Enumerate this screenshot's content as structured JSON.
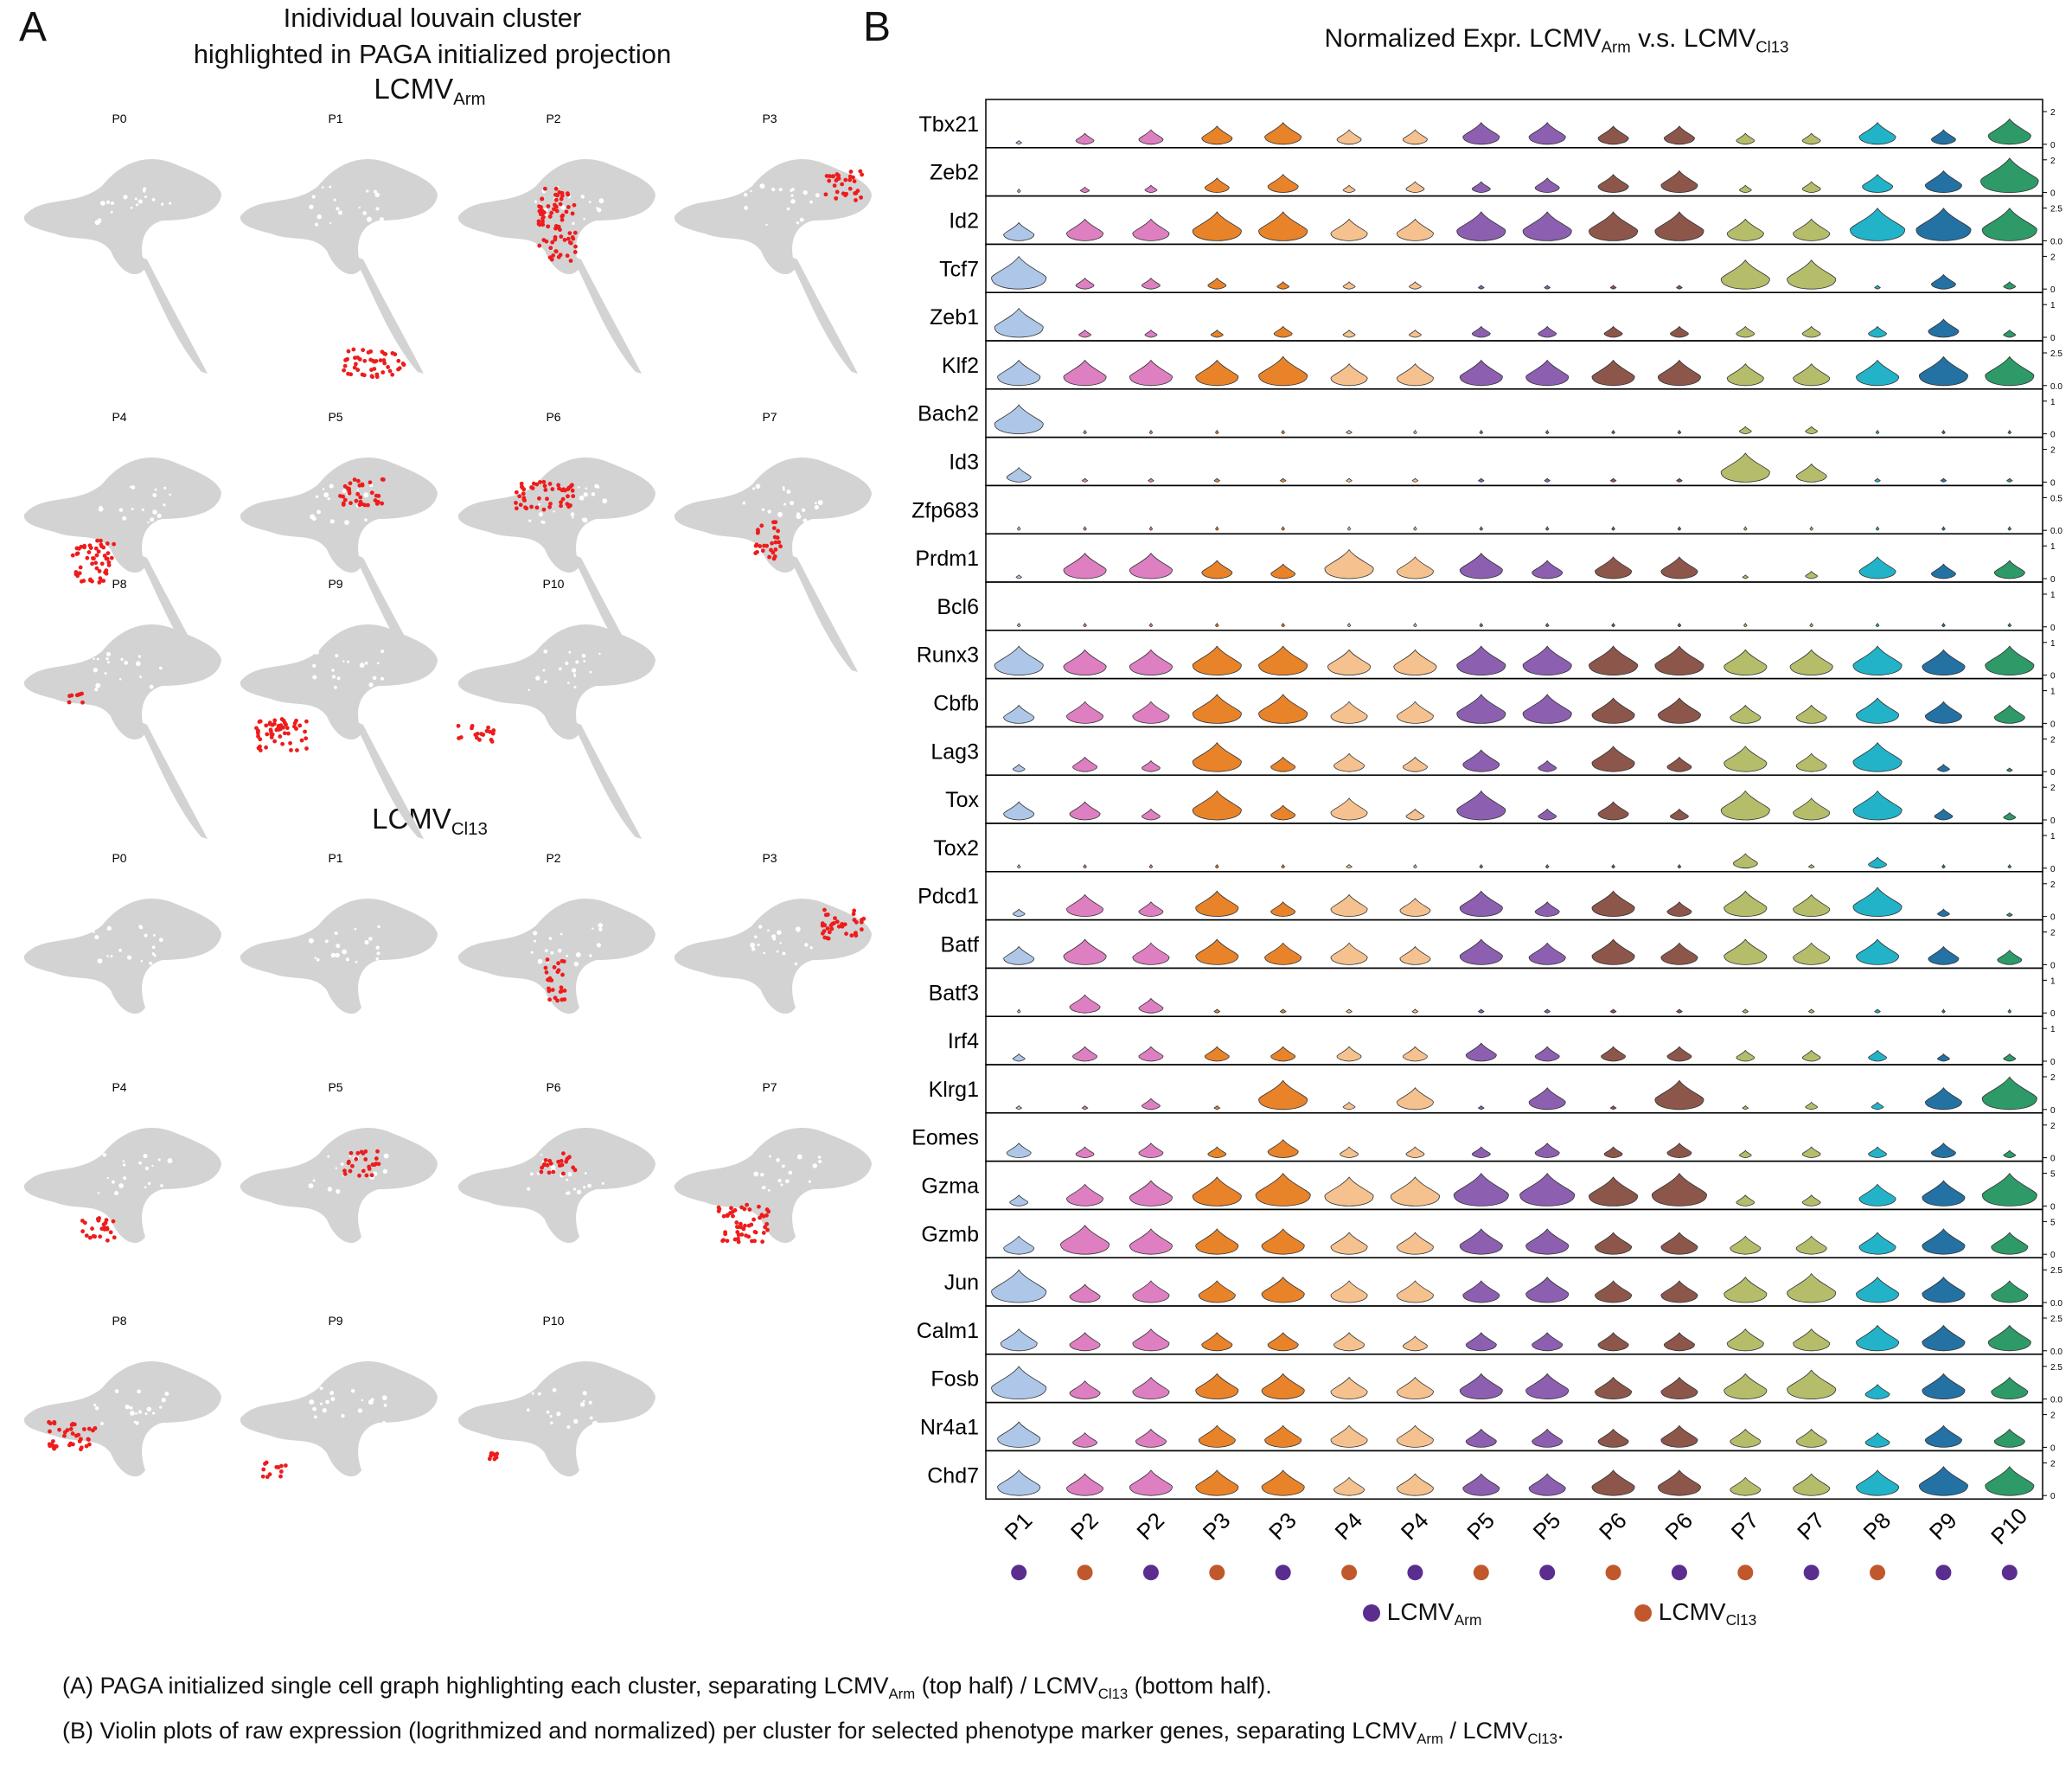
{
  "panelA": {
    "letter": "A",
    "title_line1": "Inidividual louvain cluster",
    "title_line2": "highlighted in PAGA initialized projection",
    "arm": {
      "label": "LCMV",
      "sub": "Arm"
    },
    "cl13": {
      "label": "LCMV",
      "sub": "Cl13"
    },
    "cluster_titles": [
      "P0",
      "P1",
      "P2",
      "P3",
      "P4",
      "P5",
      "P6",
      "P7",
      "P8",
      "P9",
      "P10"
    ],
    "colors": {
      "background_cells": "#d3d3d3",
      "highlight": "#ee1c1c"
    }
  },
  "panelB": {
    "letter": "B",
    "title": "Normalized Expr. LCMV",
    "title_sub1": "Arm",
    "title_mid": " v.s. LCMV",
    "title_sub2": "Cl13",
    "legend_arm": "LCMV",
    "legend_arm_sub": "Arm",
    "legend_cl13": "LCMV",
    "legend_cl13_sub": "Cl13",
    "colors": {
      "arm_dot": "#5b2d8e",
      "cl13_dot": "#c0582c"
    }
  },
  "captions": {
    "a_pre": "(A) PAGA initialized single cell graph highlighting each cluster, separating LCMV",
    "a_sub1": "Arm",
    "a_mid": " (top half) / LCMV",
    "a_sub2": "Cl13",
    "a_post": " (bottom half).",
    "b_pre": "(B) Violin plots of raw expression (logrithmized and normalized) per cluster for selected phenotype marker genes, separating LCMV",
    "b_sub1": "Arm",
    "b_mid": " / LCMV",
    "b_sub2": "Cl13",
    "b_post": "."
  },
  "chart_data": {
    "type": "violin",
    "columns": [
      {
        "label": "P1",
        "condition": "Arm",
        "color": "#aec7e8"
      },
      {
        "label": "P2",
        "condition": "Cl13",
        "color": "#de7fc2"
      },
      {
        "label": "P2",
        "condition": "Arm",
        "color": "#de7fc2"
      },
      {
        "label": "P3",
        "condition": "Cl13",
        "color": "#e8832a"
      },
      {
        "label": "P3",
        "condition": "Arm",
        "color": "#e8832a"
      },
      {
        "label": "P4",
        "condition": "Cl13",
        "color": "#f5c28f"
      },
      {
        "label": "P4",
        "condition": "Arm",
        "color": "#f5c28f"
      },
      {
        "label": "P5",
        "condition": "Cl13",
        "color": "#8d5fb0"
      },
      {
        "label": "P5",
        "condition": "Arm",
        "color": "#8d5fb0"
      },
      {
        "label": "P6",
        "condition": "Cl13",
        "color": "#8c564b"
      },
      {
        "label": "P6",
        "condition": "Arm",
        "color": "#8c564b"
      },
      {
        "label": "P7",
        "condition": "Cl13",
        "color": "#b5bd6b"
      },
      {
        "label": "P7",
        "condition": "Arm",
        "color": "#b5bd6b"
      },
      {
        "label": "P8",
        "condition": "Cl13",
        "color": "#22b3c8"
      },
      {
        "label": "P9",
        "condition": "Arm",
        "color": "#2471a3"
      },
      {
        "label": "P10",
        "condition": "Arm",
        "color": "#2e9a67"
      }
    ],
    "genes": [
      {
        "name": "Tbx21",
        "ticks": [
          "2",
          "0"
        ],
        "levels": [
          0.1,
          0.3,
          0.4,
          0.5,
          0.6,
          0.4,
          0.4,
          0.6,
          0.6,
          0.5,
          0.5,
          0.3,
          0.3,
          0.6,
          0.4,
          0.7
        ]
      },
      {
        "name": "Zeb2",
        "ticks": [
          "2",
          "0"
        ],
        "levels": [
          0.05,
          0.15,
          0.2,
          0.4,
          0.5,
          0.2,
          0.3,
          0.3,
          0.4,
          0.5,
          0.6,
          0.2,
          0.3,
          0.5,
          0.6,
          0.95
        ]
      },
      {
        "name": "Id2",
        "ticks": [
          "2.5",
          "0.0"
        ],
        "levels": [
          0.5,
          0.6,
          0.6,
          0.8,
          0.8,
          0.6,
          0.6,
          0.8,
          0.8,
          0.8,
          0.8,
          0.6,
          0.6,
          0.9,
          0.9,
          0.9
        ]
      },
      {
        "name": "Tcf7",
        "ticks": [
          "2",
          "0"
        ],
        "levels": [
          0.9,
          0.3,
          0.3,
          0.3,
          0.2,
          0.2,
          0.2,
          0.1,
          0.1,
          0.1,
          0.1,
          0.8,
          0.8,
          0.1,
          0.4,
          0.2
        ]
      },
      {
        "name": "Zeb1",
        "ticks": [
          "1",
          "0"
        ],
        "levels": [
          0.8,
          0.2,
          0.2,
          0.2,
          0.3,
          0.2,
          0.2,
          0.3,
          0.3,
          0.3,
          0.3,
          0.3,
          0.3,
          0.3,
          0.5,
          0.2
        ]
      },
      {
        "name": "Klf2",
        "ticks": [
          "2.5",
          "0.0"
        ],
        "levels": [
          0.7,
          0.7,
          0.7,
          0.7,
          0.8,
          0.6,
          0.6,
          0.7,
          0.7,
          0.7,
          0.7,
          0.6,
          0.6,
          0.7,
          0.8,
          0.8
        ]
      },
      {
        "name": "Bach2",
        "ticks": [
          "1",
          "0"
        ],
        "levels": [
          0.8,
          0.05,
          0.05,
          0.05,
          0.05,
          0.1,
          0.05,
          0.05,
          0.05,
          0.05,
          0.05,
          0.2,
          0.2,
          0.05,
          0.05,
          0.05
        ]
      },
      {
        "name": "Id3",
        "ticks": [
          "2",
          "0"
        ],
        "levels": [
          0.4,
          0.1,
          0.1,
          0.1,
          0.1,
          0.1,
          0.1,
          0.1,
          0.1,
          0.1,
          0.1,
          0.8,
          0.5,
          0.1,
          0.1,
          0.1
        ]
      },
      {
        "name": "Zfp683",
        "ticks": [
          "0.5",
          "0.0"
        ],
        "levels": [
          0,
          0.05,
          0.05,
          0.05,
          0.05,
          0.05,
          0.05,
          0.05,
          0.05,
          0.05,
          0.05,
          0.05,
          0.05,
          0.05,
          0.05,
          0.05
        ]
      },
      {
        "name": "Prdm1",
        "ticks": [
          "1",
          "0"
        ],
        "levels": [
          0.1,
          0.7,
          0.7,
          0.5,
          0.4,
          0.8,
          0.6,
          0.7,
          0.5,
          0.6,
          0.6,
          0.1,
          0.2,
          0.6,
          0.4,
          0.5
        ]
      },
      {
        "name": "Bcl6",
        "ticks": [
          "1",
          "0"
        ],
        "levels": [
          0.05,
          0.05,
          0.05,
          0.05,
          0.05,
          0.05,
          0.05,
          0.05,
          0.05,
          0.05,
          0.05,
          0.05,
          0.05,
          0.05,
          0.05,
          0.05
        ]
      },
      {
        "name": "Runx3",
        "ticks": [
          "1",
          "0"
        ],
        "levels": [
          0.8,
          0.7,
          0.7,
          0.8,
          0.8,
          0.7,
          0.7,
          0.8,
          0.8,
          0.8,
          0.8,
          0.7,
          0.7,
          0.8,
          0.7,
          0.8
        ]
      },
      {
        "name": "Cbfb",
        "ticks": [
          "1",
          "0"
        ],
        "levels": [
          0.5,
          0.6,
          0.6,
          0.8,
          0.8,
          0.6,
          0.6,
          0.8,
          0.8,
          0.7,
          0.7,
          0.5,
          0.5,
          0.7,
          0.6,
          0.5
        ]
      },
      {
        "name": "Lag3",
        "ticks": [
          "2",
          "0"
        ],
        "levels": [
          0.2,
          0.4,
          0.3,
          0.8,
          0.4,
          0.5,
          0.4,
          0.6,
          0.3,
          0.7,
          0.4,
          0.7,
          0.5,
          0.8,
          0.2,
          0.1
        ]
      },
      {
        "name": "Tox",
        "ticks": [
          "2",
          "0"
        ],
        "levels": [
          0.5,
          0.5,
          0.3,
          0.8,
          0.4,
          0.6,
          0.3,
          0.8,
          0.3,
          0.5,
          0.3,
          0.8,
          0.6,
          0.8,
          0.3,
          0.2
        ]
      },
      {
        "name": "Tox2",
        "ticks": [
          "1",
          "0"
        ],
        "levels": [
          0.05,
          0.05,
          0.05,
          0.05,
          0.05,
          0.1,
          0.05,
          0.05,
          0.05,
          0.05,
          0.05,
          0.4,
          0.1,
          0.3,
          0.05,
          0.05
        ]
      },
      {
        "name": "Pdcd1",
        "ticks": [
          "2",
          "0"
        ],
        "levels": [
          0.2,
          0.6,
          0.4,
          0.7,
          0.4,
          0.6,
          0.5,
          0.7,
          0.4,
          0.7,
          0.4,
          0.7,
          0.6,
          0.8,
          0.2,
          0.1
        ]
      },
      {
        "name": "Batf",
        "ticks": [
          "2",
          "0"
        ],
        "levels": [
          0.5,
          0.7,
          0.6,
          0.7,
          0.6,
          0.6,
          0.5,
          0.7,
          0.6,
          0.7,
          0.6,
          0.7,
          0.6,
          0.7,
          0.5,
          0.4
        ]
      },
      {
        "name": "Batf3",
        "ticks": [
          "1",
          "0"
        ],
        "levels": [
          0.05,
          0.5,
          0.4,
          0.1,
          0.1,
          0.1,
          0.1,
          0.1,
          0.1,
          0.1,
          0.1,
          0.1,
          0.1,
          0.1,
          0.05,
          0.05
        ]
      },
      {
        "name": "Irf4",
        "ticks": [
          "1",
          "0"
        ],
        "levels": [
          0.2,
          0.4,
          0.4,
          0.4,
          0.4,
          0.4,
          0.4,
          0.5,
          0.4,
          0.4,
          0.4,
          0.3,
          0.3,
          0.3,
          0.2,
          0.2
        ]
      },
      {
        "name": "Klrg1",
        "ticks": [
          "2",
          "0"
        ],
        "levels": [
          0.1,
          0.1,
          0.3,
          0.1,
          0.8,
          0.2,
          0.6,
          0.1,
          0.6,
          0.1,
          0.8,
          0.1,
          0.2,
          0.2,
          0.6,
          0.9
        ]
      },
      {
        "name": "Eomes",
        "ticks": [
          "2",
          "0"
        ],
        "levels": [
          0.4,
          0.3,
          0.4,
          0.3,
          0.5,
          0.3,
          0.3,
          0.3,
          0.4,
          0.3,
          0.4,
          0.2,
          0.3,
          0.3,
          0.4,
          0.2
        ]
      },
      {
        "name": "Gzma",
        "ticks": [
          "5",
          "0"
        ],
        "levels": [
          0.3,
          0.6,
          0.7,
          0.8,
          0.9,
          0.8,
          0.8,
          0.9,
          0.9,
          0.8,
          0.9,
          0.3,
          0.3,
          0.6,
          0.7,
          0.9
        ]
      },
      {
        "name": "Gzmb",
        "ticks": [
          "5",
          "0"
        ],
        "levels": [
          0.5,
          0.8,
          0.7,
          0.7,
          0.7,
          0.6,
          0.6,
          0.7,
          0.7,
          0.6,
          0.6,
          0.5,
          0.5,
          0.6,
          0.7,
          0.6
        ]
      },
      {
        "name": "Jun",
        "ticks": [
          "2.5",
          "0.0"
        ],
        "levels": [
          0.9,
          0.5,
          0.6,
          0.6,
          0.7,
          0.6,
          0.6,
          0.6,
          0.7,
          0.6,
          0.6,
          0.7,
          0.8,
          0.7,
          0.7,
          0.6
        ]
      },
      {
        "name": "Calm1",
        "ticks": [
          "2.5",
          "0.0"
        ],
        "levels": [
          0.6,
          0.5,
          0.6,
          0.5,
          0.5,
          0.5,
          0.4,
          0.5,
          0.5,
          0.5,
          0.5,
          0.6,
          0.6,
          0.7,
          0.7,
          0.7
        ]
      },
      {
        "name": "Fosb",
        "ticks": [
          "2.5",
          "0.0"
        ],
        "levels": [
          0.9,
          0.5,
          0.6,
          0.7,
          0.7,
          0.6,
          0.6,
          0.7,
          0.7,
          0.6,
          0.6,
          0.7,
          0.8,
          0.4,
          0.7,
          0.6
        ]
      },
      {
        "name": "Nr4a1",
        "ticks": [
          "2",
          "0"
        ],
        "levels": [
          0.7,
          0.4,
          0.5,
          0.6,
          0.6,
          0.6,
          0.6,
          0.5,
          0.5,
          0.5,
          0.6,
          0.5,
          0.5,
          0.4,
          0.6,
          0.5
        ]
      },
      {
        "name": "Chd7",
        "ticks": [
          "2",
          "0"
        ],
        "levels": [
          0.7,
          0.6,
          0.7,
          0.7,
          0.7,
          0.5,
          0.6,
          0.6,
          0.6,
          0.7,
          0.7,
          0.5,
          0.6,
          0.7,
          0.8,
          0.8
        ]
      }
    ]
  }
}
